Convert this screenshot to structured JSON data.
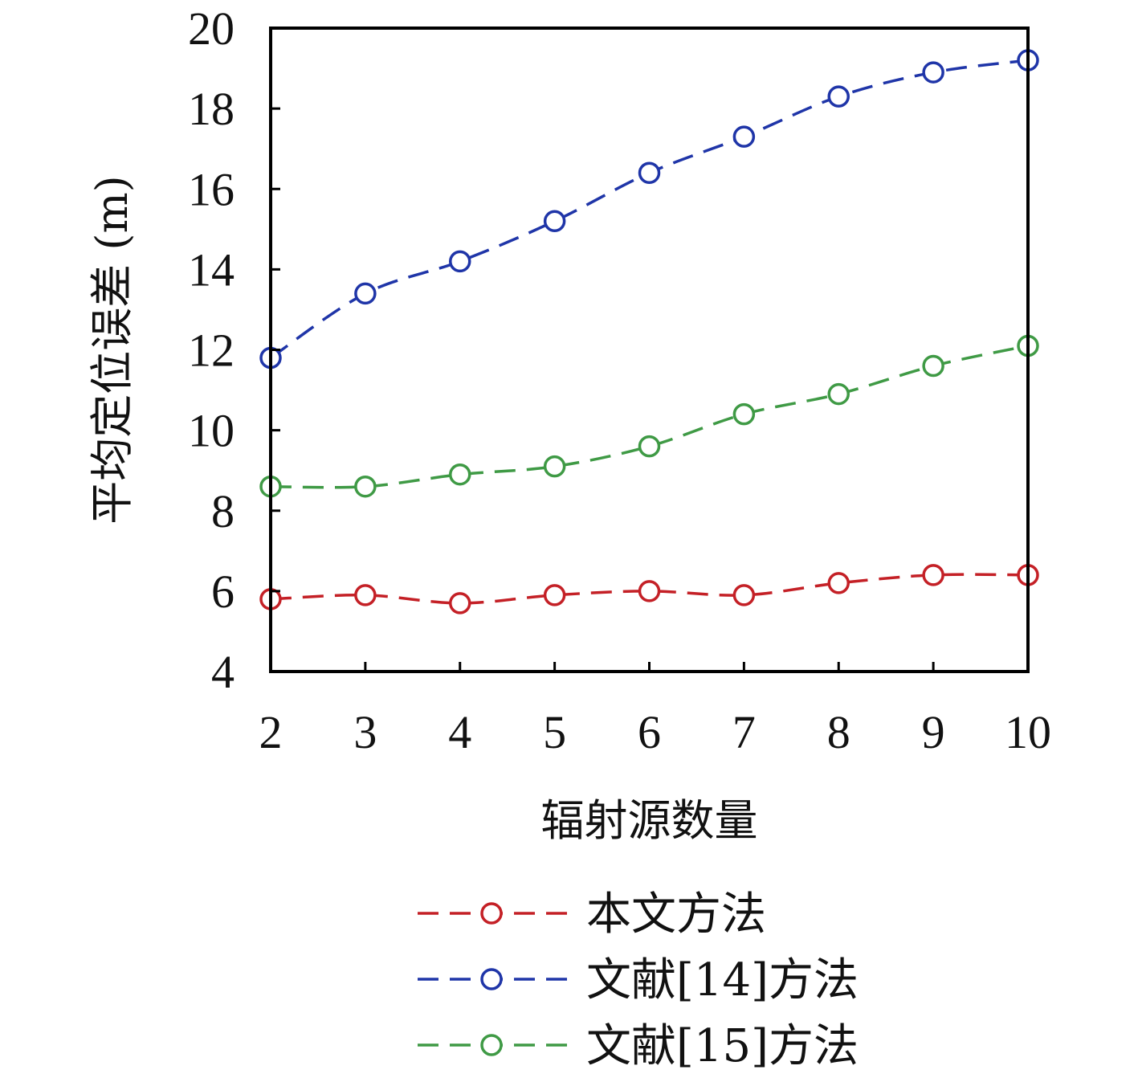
{
  "chart_data": {
    "type": "line",
    "title": "",
    "xlabel": "辐射源数量",
    "ylabel": "平均定位误差 (m)",
    "x": [
      2,
      3,
      4,
      5,
      6,
      7,
      8,
      9,
      10
    ],
    "xticks": [
      "2",
      "3",
      "4",
      "5",
      "6",
      "7",
      "8",
      "9",
      "10"
    ],
    "yticks": [
      "4",
      "6",
      "8",
      "10",
      "12",
      "14",
      "16",
      "18",
      "20"
    ],
    "xlim": [
      2,
      10
    ],
    "ylim": [
      4,
      20
    ],
    "grid": false,
    "legend_position": "bottom",
    "series": [
      {
        "name": "本文方法",
        "color": "#c42026",
        "line_style": "dashed",
        "marker": "open-circle",
        "values": [
          5.8,
          5.9,
          5.7,
          5.9,
          6.0,
          5.9,
          6.2,
          6.4,
          6.4
        ]
      },
      {
        "name": "文献[14]方法",
        "color": "#1f35a8",
        "line_style": "dashed",
        "marker": "open-circle",
        "values": [
          11.8,
          13.4,
          14.2,
          15.2,
          16.4,
          17.3,
          18.3,
          18.9,
          19.2
        ]
      },
      {
        "name": "文献[15]方法",
        "color": "#3f9a45",
        "line_style": "dashed",
        "marker": "open-circle",
        "values": [
          8.6,
          8.6,
          8.9,
          9.1,
          9.6,
          10.4,
          10.9,
          11.6,
          12.1
        ]
      }
    ]
  }
}
